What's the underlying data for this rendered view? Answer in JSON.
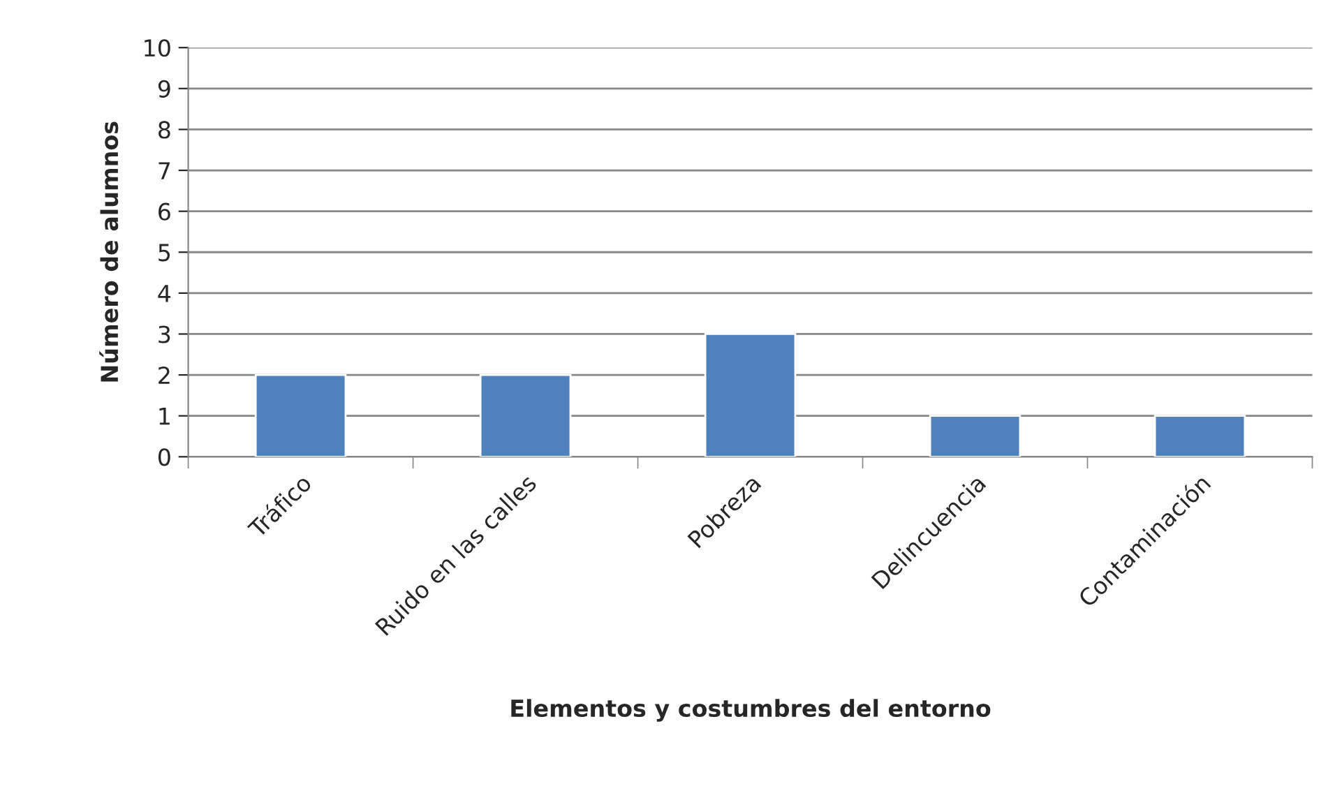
{
  "chart_data": {
    "type": "bar",
    "xlabel": "Elementos y costumbres del entorno",
    "ylabel": "Número de alumnos",
    "categories": [
      "Tráfico",
      "Ruido en las calles",
      "Pobreza",
      "Delincuencia",
      "Contaminación"
    ],
    "values": [
      2,
      2,
      3,
      1,
      1
    ],
    "color": "#4f81bd",
    "ylim": [
      0,
      10
    ],
    "yticks": [
      0,
      1,
      2,
      3,
      4,
      5,
      6,
      7,
      8,
      9,
      10
    ],
    "grid": "y",
    "legend": false
  }
}
